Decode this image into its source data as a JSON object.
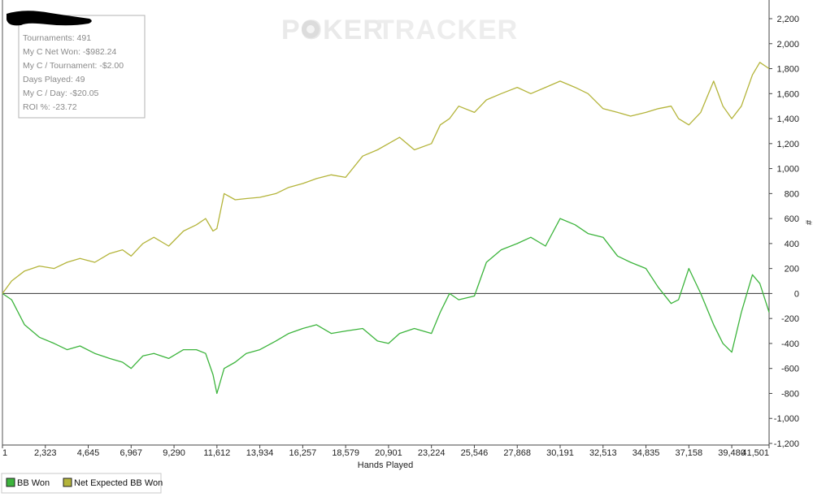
{
  "watermark": {
    "poker": "POKER",
    "tracker": "TRACKER"
  },
  "stats": {
    "lines": [
      "Tournaments: 491",
      "My C Net Won: -$982.24",
      "My C / Tournament: -$2.00",
      "Days Played: 49",
      "My C / Day: -$20.05",
      "ROI %: -23.72"
    ]
  },
  "right_axis_symbol": "#",
  "colors": {
    "bb_won": "#3cb43c",
    "net_expected_bb_won": "#b4b43a",
    "watermark_poker": "#e9e9e9",
    "watermark_tracker": "#ededed",
    "zero_line": "#333333"
  },
  "chart_data": {
    "type": "line",
    "xlabel": "Hands Played",
    "ylabel": "",
    "xlim": [
      1,
      41501
    ],
    "ylim": [
      -1200,
      2200
    ],
    "x_ticks": [
      "1",
      "2,323",
      "4,645",
      "6,967",
      "9,290",
      "11,612",
      "13,934",
      "16,257",
      "18,579",
      "20,901",
      "23,224",
      "25,546",
      "27,868",
      "30,191",
      "32,513",
      "34,835",
      "37,158",
      "39,480",
      "41,501"
    ],
    "y_ticks": [
      "2,200",
      "2,000",
      "1,800",
      "1,600",
      "1,400",
      "1,200",
      "1,000",
      "800",
      "600",
      "400",
      "200",
      "0",
      "-200",
      "-400",
      "-600",
      "-800",
      "-1,000",
      "-1,200"
    ],
    "legend_position": "bottom-left",
    "series": [
      {
        "name": "BB Won",
        "x": [
          1,
          500,
          1200,
          2000,
          2800,
          3500,
          4200,
          5000,
          5800,
          6500,
          6967,
          7600,
          8200,
          9000,
          9800,
          10500,
          11000,
          11400,
          11612,
          12000,
          12600,
          13200,
          13934,
          14800,
          15500,
          16257,
          17000,
          17800,
          18579,
          19500,
          20300,
          20901,
          21500,
          22300,
          23224,
          23700,
          24200,
          24700,
          25546,
          26200,
          27000,
          27868,
          28600,
          29400,
          30191,
          31000,
          31700,
          32513,
          33300,
          34000,
          34835,
          35500,
          36200,
          36600,
          37158,
          37800,
          38500,
          39000,
          39480,
          40000,
          40600,
          41000,
          41501
        ],
        "y": [
          0,
          -50,
          -250,
          -350,
          -400,
          -450,
          -420,
          -480,
          -520,
          -550,
          -600,
          -500,
          -480,
          -520,
          -450,
          -450,
          -480,
          -650,
          -800,
          -600,
          -550,
          -480,
          -450,
          -380,
          -320,
          -280,
          -250,
          -320,
          -300,
          -280,
          -380,
          -400,
          -320,
          -280,
          -320,
          -150,
          0,
          -50,
          -20,
          250,
          350,
          400,
          450,
          380,
          600,
          550,
          480,
          450,
          300,
          250,
          200,
          50,
          -80,
          -50,
          200,
          0,
          -250,
          -400,
          -470,
          -150,
          150,
          80,
          -150
        ]
      },
      {
        "name": "Net Expected BB Won",
        "x": [
          1,
          500,
          1200,
          2000,
          2800,
          3500,
          4200,
          5000,
          5800,
          6500,
          6967,
          7600,
          8200,
          9000,
          9800,
          10500,
          11000,
          11400,
          11612,
          12000,
          12600,
          13200,
          13934,
          14800,
          15500,
          16257,
          17000,
          17800,
          18579,
          19500,
          20300,
          20901,
          21500,
          22300,
          23224,
          23700,
          24200,
          24700,
          25546,
          26200,
          27000,
          27868,
          28600,
          29400,
          30191,
          31000,
          31700,
          32513,
          33300,
          34000,
          34835,
          35500,
          36200,
          36600,
          37158,
          37800,
          38500,
          39000,
          39480,
          40000,
          40600,
          41000,
          41501
        ],
        "y": [
          0,
          100,
          180,
          220,
          200,
          250,
          280,
          250,
          320,
          350,
          300,
          400,
          450,
          380,
          500,
          550,
          600,
          500,
          520,
          800,
          750,
          760,
          770,
          800,
          850,
          880,
          920,
          950,
          930,
          1100,
          1150,
          1200,
          1250,
          1150,
          1200,
          1350,
          1400,
          1500,
          1450,
          1550,
          1600,
          1650,
          1600,
          1650,
          1700,
          1650,
          1600,
          1480,
          1450,
          1420,
          1450,
          1480,
          1500,
          1400,
          1350,
          1450,
          1700,
          1500,
          1400,
          1500,
          1750,
          1850,
          1800
        ]
      }
    ]
  }
}
